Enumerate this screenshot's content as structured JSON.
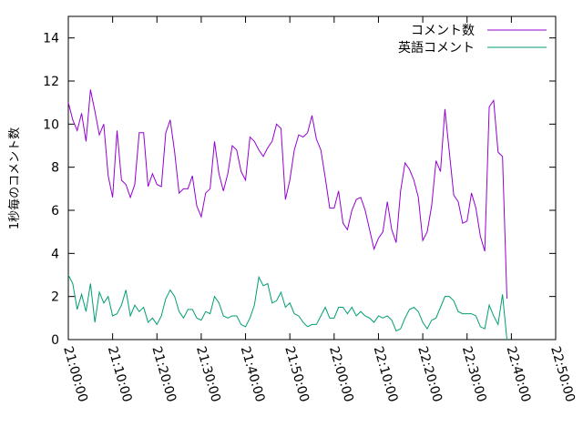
{
  "chart_data": {
    "type": "line",
    "title": "",
    "xlabel": "",
    "ylabel": "1秒毎のコメント数",
    "x_ticks": [
      "21:00:00",
      "21:10:00",
      "21:20:00",
      "21:30:00",
      "21:40:00",
      "21:50:00",
      "22:00:00",
      "22:10:00",
      "22:20:00",
      "22:30:00",
      "22:40:00",
      "22:50:00"
    ],
    "x_range_minutes": [
      0,
      110
    ],
    "ylim": [
      0,
      15
    ],
    "y_ticks": [
      0,
      2,
      4,
      6,
      8,
      10,
      12,
      14
    ],
    "grid": false,
    "legend_position": "top-right",
    "series": [
      {
        "name": "コメント数",
        "color": "#9400d3",
        "points": [
          [
            0,
            11.0
          ],
          [
            1,
            10.2
          ],
          [
            2,
            9.7
          ],
          [
            3,
            10.5
          ],
          [
            4,
            9.2
          ],
          [
            5,
            11.6
          ],
          [
            6,
            10.6
          ],
          [
            7,
            9.5
          ],
          [
            8,
            10.0
          ],
          [
            9,
            7.6
          ],
          [
            10,
            6.6
          ],
          [
            11,
            9.7
          ],
          [
            12,
            7.4
          ],
          [
            13,
            7.2
          ],
          [
            14,
            6.6
          ],
          [
            15,
            7.2
          ],
          [
            16,
            9.6
          ],
          [
            17,
            9.6
          ],
          [
            18,
            7.1
          ],
          [
            19,
            7.7
          ],
          [
            20,
            7.2
          ],
          [
            21,
            7.1
          ],
          [
            22,
            9.6
          ],
          [
            23,
            10.2
          ],
          [
            24,
            8.7
          ],
          [
            25,
            6.8
          ],
          [
            26,
            7.0
          ],
          [
            27,
            7.0
          ],
          [
            28,
            7.6
          ],
          [
            29,
            6.2
          ],
          [
            30,
            5.7
          ],
          [
            31,
            6.8
          ],
          [
            32,
            7.0
          ],
          [
            33,
            9.2
          ],
          [
            34,
            7.7
          ],
          [
            35,
            6.9
          ],
          [
            36,
            7.7
          ],
          [
            37,
            9.0
          ],
          [
            38,
            8.8
          ],
          [
            39,
            7.8
          ],
          [
            40,
            7.4
          ],
          [
            41,
            9.4
          ],
          [
            42,
            9.2
          ],
          [
            43,
            8.8
          ],
          [
            44,
            8.5
          ],
          [
            45,
            8.9
          ],
          [
            46,
            9.2
          ],
          [
            47,
            10.0
          ],
          [
            48,
            9.8
          ],
          [
            49,
            6.5
          ],
          [
            50,
            7.4
          ],
          [
            51,
            8.8
          ],
          [
            52,
            9.5
          ],
          [
            53,
            9.4
          ],
          [
            54,
            9.6
          ],
          [
            55,
            10.4
          ],
          [
            56,
            9.3
          ],
          [
            57,
            8.8
          ],
          [
            58,
            7.5
          ],
          [
            59,
            6.1
          ],
          [
            60,
            6.1
          ],
          [
            61,
            6.9
          ],
          [
            62,
            5.4
          ],
          [
            63,
            5.1
          ],
          [
            64,
            6.0
          ],
          [
            65,
            6.5
          ],
          [
            66,
            6.6
          ],
          [
            67,
            6.0
          ],
          [
            68,
            5.1
          ],
          [
            69,
            4.2
          ],
          [
            70,
            4.7
          ],
          [
            71,
            5.0
          ],
          [
            72,
            6.4
          ],
          [
            73,
            5.1
          ],
          [
            74,
            4.5
          ],
          [
            75,
            6.9
          ],
          [
            76,
            8.2
          ],
          [
            77,
            7.9
          ],
          [
            78,
            7.4
          ],
          [
            79,
            6.6
          ],
          [
            80,
            4.6
          ],
          [
            81,
            5.0
          ],
          [
            82,
            6.2
          ],
          [
            83,
            8.3
          ],
          [
            84,
            7.8
          ],
          [
            85,
            10.7
          ],
          [
            86,
            8.7
          ],
          [
            87,
            6.7
          ],
          [
            88,
            6.4
          ],
          [
            89,
            5.4
          ],
          [
            90,
            5.5
          ],
          [
            91,
            6.8
          ],
          [
            92,
            6.1
          ],
          [
            93,
            4.8
          ],
          [
            94,
            4.1
          ],
          [
            95,
            10.8
          ],
          [
            96,
            11.1
          ],
          [
            97,
            8.7
          ],
          [
            98,
            8.5
          ],
          [
            99,
            1.9
          ]
        ]
      },
      {
        "name": "英語コメント",
        "color": "#009e73",
        "points": [
          [
            0,
            3.0
          ],
          [
            1,
            2.6
          ],
          [
            2,
            1.4
          ],
          [
            3,
            2.1
          ],
          [
            4,
            1.3
          ],
          [
            5,
            2.6
          ],
          [
            6,
            0.8
          ],
          [
            7,
            2.2
          ],
          [
            8,
            1.7
          ],
          [
            9,
            2.0
          ],
          [
            10,
            1.1
          ],
          [
            11,
            1.2
          ],
          [
            12,
            1.6
          ],
          [
            13,
            2.3
          ],
          [
            14,
            1.1
          ],
          [
            15,
            1.6
          ],
          [
            16,
            1.3
          ],
          [
            17,
            1.5
          ],
          [
            18,
            0.8
          ],
          [
            19,
            1.0
          ],
          [
            20,
            0.7
          ],
          [
            21,
            1.1
          ],
          [
            22,
            1.9
          ],
          [
            23,
            2.3
          ],
          [
            24,
            2.0
          ],
          [
            25,
            1.3
          ],
          [
            26,
            1.0
          ],
          [
            27,
            1.4
          ],
          [
            28,
            1.4
          ],
          [
            29,
            1.0
          ],
          [
            30,
            0.9
          ],
          [
            31,
            1.3
          ],
          [
            32,
            1.2
          ],
          [
            33,
            2.0
          ],
          [
            34,
            1.7
          ],
          [
            35,
            1.1
          ],
          [
            36,
            1.0
          ],
          [
            37,
            1.1
          ],
          [
            38,
            1.1
          ],
          [
            39,
            0.7
          ],
          [
            40,
            0.6
          ],
          [
            41,
            1.0
          ],
          [
            42,
            1.6
          ],
          [
            43,
            2.9
          ],
          [
            44,
            2.5
          ],
          [
            45,
            2.6
          ],
          [
            46,
            1.7
          ],
          [
            47,
            1.8
          ],
          [
            48,
            2.2
          ],
          [
            49,
            1.5
          ],
          [
            50,
            1.7
          ],
          [
            51,
            1.2
          ],
          [
            52,
            1.1
          ],
          [
            53,
            0.8
          ],
          [
            54,
            0.6
          ],
          [
            55,
            0.7
          ],
          [
            56,
            0.7
          ],
          [
            57,
            1.1
          ],
          [
            58,
            1.5
          ],
          [
            59,
            1.0
          ],
          [
            60,
            1.0
          ],
          [
            61,
            1.5
          ],
          [
            62,
            1.5
          ],
          [
            63,
            1.2
          ],
          [
            64,
            1.5
          ],
          [
            65,
            1.1
          ],
          [
            66,
            1.3
          ],
          [
            67,
            1.1
          ],
          [
            68,
            1.0
          ],
          [
            69,
            0.8
          ],
          [
            70,
            1.1
          ],
          [
            71,
            1.0
          ],
          [
            72,
            1.1
          ],
          [
            73,
            0.9
          ],
          [
            74,
            0.4
          ],
          [
            75,
            0.5
          ],
          [
            76,
            1.0
          ],
          [
            77,
            1.4
          ],
          [
            78,
            1.5
          ],
          [
            79,
            1.3
          ],
          [
            80,
            0.8
          ],
          [
            81,
            0.5
          ],
          [
            82,
            0.9
          ],
          [
            83,
            1.0
          ],
          [
            84,
            1.5
          ],
          [
            85,
            2.0
          ],
          [
            86,
            2.0
          ],
          [
            87,
            1.8
          ],
          [
            88,
            1.3
          ],
          [
            89,
            1.2
          ],
          [
            90,
            1.2
          ],
          [
            91,
            1.2
          ],
          [
            92,
            1.1
          ],
          [
            93,
            0.6
          ],
          [
            94,
            0.5
          ],
          [
            95,
            1.6
          ],
          [
            96,
            1.1
          ],
          [
            97,
            0.7
          ],
          [
            98,
            2.1
          ],
          [
            99,
            0.0
          ]
        ]
      }
    ]
  }
}
